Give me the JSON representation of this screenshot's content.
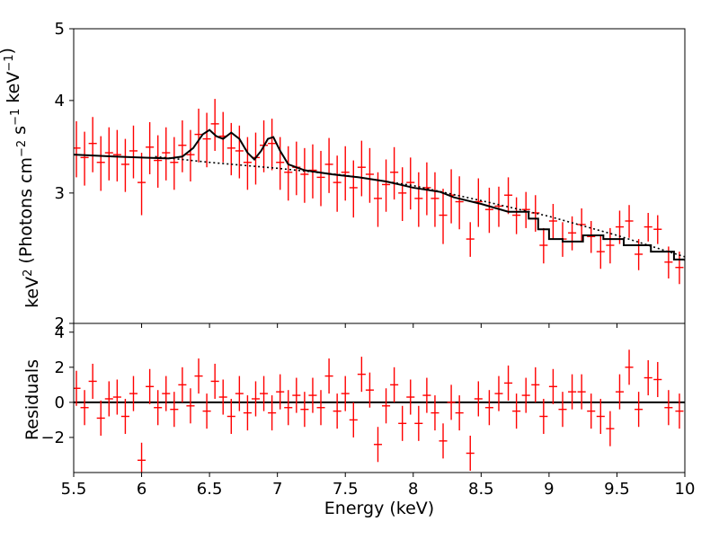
{
  "figure": {
    "xlabel": "Energy (keV)",
    "top_ylabel": "keV² (Photons cm⁻² s⁻¹ keV⁻¹)",
    "bottom_ylabel": "Residuals"
  },
  "chart_data": [
    {
      "type": "scatter",
      "panel": "spectrum",
      "title": "",
      "xlabel": "Energy (keV)",
      "ylabel": "keV² (Photons cm⁻² s⁻¹ keV⁻¹)",
      "xlim": [
        5.5,
        10
      ],
      "ylim": [
        2,
        5
      ],
      "y_scale": "log",
      "grid": false,
      "x_ticks": [
        "5.5",
        "6",
        "6.5",
        "7",
        "7.5",
        "8",
        "8.5",
        "9",
        "9.5",
        "10"
      ],
      "y_ticks": [
        "2",
        "3",
        "4",
        "5"
      ],
      "colors": {
        "data": "#ff0000",
        "model": "#000000"
      },
      "series": [
        {
          "name": "",
          "style": "red crosses with error bars",
          "points": [
            [
              5.52,
              3.45,
              0.3
            ],
            [
              5.58,
              3.35,
              0.28
            ],
            [
              5.64,
              3.5,
              0.3
            ],
            [
              5.7,
              3.3,
              0.28
            ],
            [
              5.76,
              3.4,
              0.28
            ],
            [
              5.82,
              3.38,
              0.27
            ],
            [
              5.88,
              3.28,
              0.27
            ],
            [
              5.94,
              3.42,
              0.28
            ],
            [
              6.0,
              3.1,
              0.3
            ],
            [
              6.06,
              3.46,
              0.28
            ],
            [
              6.12,
              3.32,
              0.27
            ],
            [
              6.18,
              3.4,
              0.28
            ],
            [
              6.24,
              3.3,
              0.27
            ],
            [
              6.3,
              3.48,
              0.28
            ],
            [
              6.36,
              3.38,
              0.27
            ],
            [
              6.42,
              3.6,
              0.3
            ],
            [
              6.48,
              3.55,
              0.3
            ],
            [
              6.54,
              3.72,
              0.3
            ],
            [
              6.6,
              3.58,
              0.28
            ],
            [
              6.66,
              3.45,
              0.28
            ],
            [
              6.72,
              3.42,
              0.28
            ],
            [
              6.78,
              3.3,
              0.27
            ],
            [
              6.84,
              3.35,
              0.27
            ],
            [
              6.9,
              3.48,
              0.28
            ],
            [
              6.96,
              3.5,
              0.28
            ],
            [
              7.02,
              3.3,
              0.27
            ],
            [
              7.08,
              3.2,
              0.27
            ],
            [
              7.14,
              3.25,
              0.27
            ],
            [
              7.2,
              3.18,
              0.27
            ],
            [
              7.26,
              3.22,
              0.27
            ],
            [
              7.32,
              3.15,
              0.27
            ],
            [
              7.38,
              3.28,
              0.28
            ],
            [
              7.44,
              3.1,
              0.27
            ],
            [
              7.5,
              3.2,
              0.27
            ],
            [
              7.56,
              3.05,
              0.27
            ],
            [
              7.62,
              3.25,
              0.28
            ],
            [
              7.68,
              3.18,
              0.27
            ],
            [
              7.74,
              2.95,
              0.25
            ],
            [
              7.8,
              3.08,
              0.25
            ],
            [
              7.86,
              3.2,
              0.26
            ],
            [
              7.92,
              3.0,
              0.25
            ],
            [
              7.98,
              3.1,
              0.25
            ],
            [
              8.04,
              2.95,
              0.25
            ],
            [
              8.1,
              3.05,
              0.25
            ],
            [
              8.16,
              2.95,
              0.25
            ],
            [
              8.22,
              2.8,
              0.24
            ],
            [
              8.28,
              2.98,
              0.25
            ],
            [
              8.34,
              2.92,
              0.24
            ],
            [
              8.42,
              2.6,
              0.14
            ],
            [
              8.48,
              2.92,
              0.22
            ],
            [
              8.56,
              2.85,
              0.2
            ],
            [
              8.63,
              2.88,
              0.18
            ],
            [
              8.7,
              2.98,
              0.17
            ],
            [
              8.76,
              2.8,
              0.16
            ],
            [
              8.83,
              2.85,
              0.16
            ],
            [
              8.9,
              2.82,
              0.16
            ],
            [
              8.96,
              2.55,
              0.14
            ],
            [
              9.03,
              2.75,
              0.15
            ],
            [
              9.1,
              2.6,
              0.14
            ],
            [
              9.17,
              2.65,
              0.14
            ],
            [
              9.24,
              2.72,
              0.14
            ],
            [
              9.31,
              2.62,
              0.13
            ],
            [
              9.38,
              2.5,
              0.13
            ],
            [
              9.45,
              2.55,
              0.14
            ],
            [
              9.52,
              2.7,
              0.14
            ],
            [
              9.59,
              2.75,
              0.14
            ],
            [
              9.66,
              2.48,
              0.12
            ],
            [
              9.73,
              2.7,
              0.12
            ],
            [
              9.8,
              2.68,
              0.12
            ],
            [
              9.88,
              2.42,
              0.12
            ],
            [
              9.96,
              2.38,
              0.12
            ]
          ]
        },
        {
          "name": "",
          "style": "black step line (total model)",
          "points": [
            [
              5.5,
              3.38
            ],
            [
              5.8,
              3.36
            ],
            [
              6.0,
              3.35
            ],
            [
              6.2,
              3.34
            ],
            [
              6.3,
              3.36
            ],
            [
              6.38,
              3.45
            ],
            [
              6.45,
              3.6
            ],
            [
              6.5,
              3.65
            ],
            [
              6.55,
              3.58
            ],
            [
              6.6,
              3.55
            ],
            [
              6.66,
              3.62
            ],
            [
              6.72,
              3.55
            ],
            [
              6.78,
              3.4
            ],
            [
              6.83,
              3.33
            ],
            [
              6.88,
              3.42
            ],
            [
              6.93,
              3.55
            ],
            [
              6.97,
              3.57
            ],
            [
              7.02,
              3.42
            ],
            [
              7.08,
              3.28
            ],
            [
              7.2,
              3.22
            ],
            [
              7.4,
              3.18
            ],
            [
              7.6,
              3.15
            ],
            [
              7.8,
              3.11
            ],
            [
              7.9,
              3.08
            ],
            [
              8.0,
              3.05
            ],
            [
              8.2,
              3.01
            ],
            [
              8.3,
              2.96
            ],
            [
              8.5,
              2.9
            ],
            [
              8.7,
              2.83
            ],
            [
              8.85,
              2.77
            ],
            [
              8.92,
              2.68
            ],
            [
              9.0,
              2.6
            ],
            [
              9.1,
              2.58
            ],
            [
              9.25,
              2.63
            ],
            [
              9.4,
              2.6
            ],
            [
              9.55,
              2.55
            ],
            [
              9.75,
              2.5
            ],
            [
              9.92,
              2.44
            ],
            [
              10.0,
              2.43
            ]
          ]
        },
        {
          "name": "",
          "style": "black dotted line (continuum)",
          "points": [
            [
              6.1,
              3.36
            ],
            [
              6.5,
              3.3
            ],
            [
              7.0,
              3.24
            ],
            [
              7.5,
              3.17
            ],
            [
              8.0,
              3.07
            ],
            [
              8.5,
              2.93
            ],
            [
              9.0,
              2.79
            ],
            [
              9.5,
              2.63
            ],
            [
              10.0,
              2.46
            ]
          ]
        }
      ]
    },
    {
      "type": "scatter",
      "panel": "residuals",
      "title": "",
      "xlabel": "Energy (keV)",
      "ylabel": "Residuals",
      "xlim": [
        5.5,
        10
      ],
      "ylim": [
        -4,
        4.5
      ],
      "grid": false,
      "x_ticks": [
        "5.5",
        "6",
        "6.5",
        "7",
        "7.5",
        "8",
        "8.5",
        "9",
        "9.5",
        "10"
      ],
      "y_ticks": [
        "4",
        "2",
        "0",
        "-2"
      ],
      "zero_line": 0,
      "series": [
        {
          "name": "",
          "style": "red crosses with unit error bars",
          "points": [
            [
              5.52,
              0.8
            ],
            [
              5.58,
              -0.3
            ],
            [
              5.64,
              1.2
            ],
            [
              5.7,
              -0.9
            ],
            [
              5.76,
              0.2
            ],
            [
              5.82,
              0.3
            ],
            [
              5.88,
              -0.8
            ],
            [
              5.94,
              0.5
            ],
            [
              6.0,
              -3.3
            ],
            [
              6.06,
              0.9
            ],
            [
              6.12,
              -0.3
            ],
            [
              6.18,
              0.5
            ],
            [
              6.24,
              -0.4
            ],
            [
              6.3,
              1.0
            ],
            [
              6.36,
              -0.2
            ],
            [
              6.42,
              1.5
            ],
            [
              6.48,
              -0.5
            ],
            [
              6.54,
              1.2
            ],
            [
              6.6,
              0.3
            ],
            [
              6.66,
              -0.8
            ],
            [
              6.72,
              0.5
            ],
            [
              6.78,
              -0.6
            ],
            [
              6.84,
              0.2
            ],
            [
              6.9,
              0.5
            ],
            [
              6.96,
              -0.6
            ],
            [
              7.02,
              0.6
            ],
            [
              7.08,
              -0.3
            ],
            [
              7.14,
              0.4
            ],
            [
              7.2,
              -0.4
            ],
            [
              7.26,
              0.4
            ],
            [
              7.32,
              -0.3
            ],
            [
              7.38,
              1.5
            ],
            [
              7.44,
              -0.5
            ],
            [
              7.5,
              0.5
            ],
            [
              7.56,
              -1.0
            ],
            [
              7.62,
              1.6
            ],
            [
              7.68,
              0.7
            ],
            [
              7.74,
              -2.4
            ],
            [
              7.8,
              -0.2
            ],
            [
              7.86,
              1.0
            ],
            [
              7.92,
              -1.2
            ],
            [
              7.98,
              0.3
            ],
            [
              8.04,
              -1.2
            ],
            [
              8.1,
              0.4
            ],
            [
              8.16,
              -0.6
            ],
            [
              8.22,
              -2.2
            ],
            [
              8.28,
              0.0
            ],
            [
              8.34,
              -0.6
            ],
            [
              8.42,
              -2.9
            ],
            [
              8.48,
              0.2
            ],
            [
              8.56,
              -0.3
            ],
            [
              8.63,
              0.5
            ],
            [
              8.7,
              1.1
            ],
            [
              8.76,
              -0.5
            ],
            [
              8.83,
              0.4
            ],
            [
              8.9,
              1.0
            ],
            [
              8.96,
              -0.8
            ],
            [
              9.03,
              0.9
            ],
            [
              9.1,
              -0.4
            ],
            [
              9.17,
              0.6
            ],
            [
              9.24,
              0.6
            ],
            [
              9.31,
              -0.5
            ],
            [
              9.38,
              -0.8
            ],
            [
              9.45,
              -1.5
            ],
            [
              9.52,
              0.6
            ],
            [
              9.59,
              2.0
            ],
            [
              9.66,
              -0.4
            ],
            [
              9.73,
              1.4
            ],
            [
              9.8,
              1.3
            ],
            [
              9.88,
              -0.3
            ],
            [
              9.96,
              -0.5
            ]
          ]
        }
      ]
    }
  ]
}
